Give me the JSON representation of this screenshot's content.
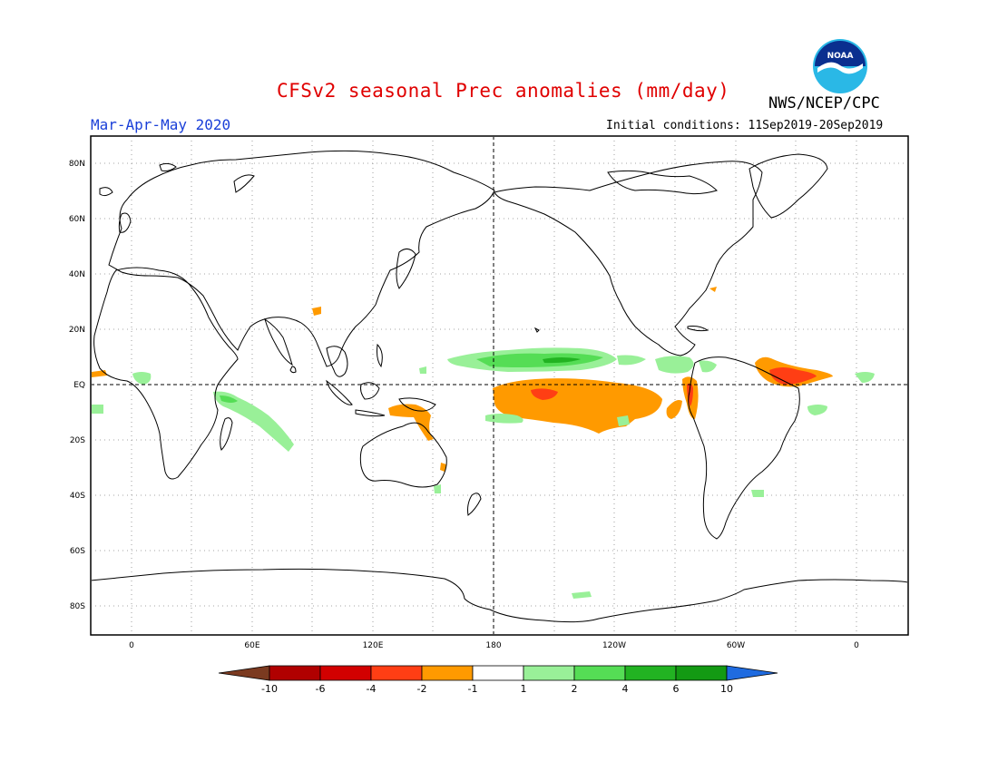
{
  "title": "CFSv2 seasonal Prec anomalies (mm/day)",
  "period": "Mar-Apr-May 2020",
  "initial_conditions": "Initial conditions: 11Sep2019-20Sep2019",
  "agency": "NWS/NCEP/CPC",
  "logo": {
    "icon": "noaa-logo-icon",
    "text": "NOAA",
    "colors": {
      "outer": "#2ab8e6",
      "inner": "#0a2f8f",
      "bird": "#ffffff"
    }
  },
  "map": {
    "projection": "cylindrical equidistant, centered on 180",
    "lat_labels": [
      "80N",
      "60N",
      "40N",
      "20N",
      "EQ",
      "20S",
      "40S",
      "60S",
      "80S"
    ],
    "lon_labels": [
      "0",
      "60E",
      "120E",
      "180",
      "120W",
      "60W",
      "0"
    ],
    "grid": "dotted",
    "reference_lines": "dashed equator and 180 meridian"
  },
  "colorbar": {
    "labels": [
      "-10",
      "-6",
      "-4",
      "-2",
      "-1",
      "1",
      "2",
      "4",
      "6",
      "10"
    ],
    "colors": [
      "#7b3a20",
      "#b00000",
      "#d20000",
      "#ff3e14",
      "#ff9a00",
      "#ffffff",
      "#99f098",
      "#55dd55",
      "#22b322",
      "#139a13",
      "#1f6be0"
    ]
  },
  "anomaly_colors": {
    "dry_strong": "#ff3e14",
    "dry": "#ff9a00",
    "wet": "#99f098",
    "wet_strong": "#55dd55",
    "wet_core": "#22b322"
  }
}
